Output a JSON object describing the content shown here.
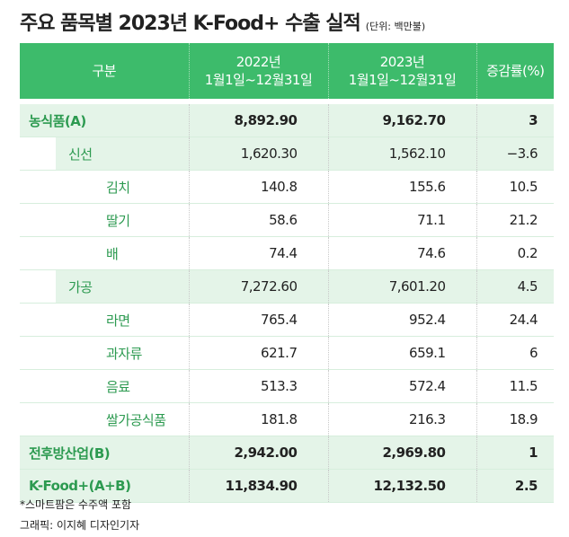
{
  "header": {
    "title": "주요 품목별 2023년 K-Food+ 수출 실적",
    "unit": "(단위: 백만불)"
  },
  "table": {
    "columns": [
      "구분",
      [
        "2022년",
        "1월1일~12월31일"
      ],
      [
        "2023년",
        "1월1일~12월31일"
      ],
      "증감률(%)"
    ],
    "rows": [
      [
        "농식품(A)",
        "8,892.90",
        "9,162.70",
        "3"
      ],
      [
        "신선",
        "1,620.30",
        "1,562.10",
        "−3.6"
      ],
      [
        "김치",
        "140.8",
        "155.6",
        "10.5"
      ],
      [
        "딸기",
        "58.6",
        "71.1",
        "21.2"
      ],
      [
        "배",
        "74.4",
        "74.6",
        "0.2"
      ],
      [
        "가공",
        "7,272.60",
        "7,601.20",
        "4.5"
      ],
      [
        "라면",
        "765.4",
        "952.4",
        "24.4"
      ],
      [
        "과자류",
        "621.7",
        "659.1",
        "6"
      ],
      [
        "음료",
        "513.3",
        "572.4",
        "11.5"
      ],
      [
        "쌀가공식품",
        "181.8",
        "216.3",
        "18.9"
      ],
      [
        "전후방산업(B)",
        "2,942.00",
        "2,969.80",
        "1"
      ],
      [
        "K-Food+(A+B)",
        "11,834.90",
        "12,132.50",
        "2.5"
      ]
    ]
  },
  "footer": {
    "note": "*스마트팜은 수주액 포함",
    "credit": "그래픽: 이지혜 디자인기자"
  }
}
